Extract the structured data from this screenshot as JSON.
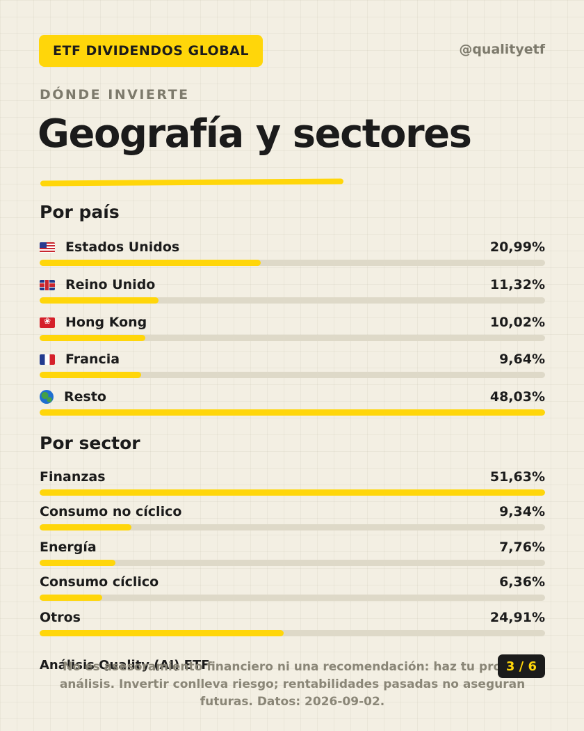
{
  "header": {
    "badge": "ETF DIVIDENDOS GLOBAL",
    "handle": "@qualityetf",
    "eyebrow": "DÓNDE INVIERTE",
    "title": "Geografía y sectores"
  },
  "countries": {
    "title": "Por país",
    "items": [
      {
        "label": "Estados Unidos",
        "value": "20,99%",
        "pct": 20.99,
        "flag": "us-flag-icon"
      },
      {
        "label": "Reino Unido",
        "value": "11,32%",
        "pct": 11.32,
        "flag": "uk-flag-icon"
      },
      {
        "label": "Hong Kong",
        "value": "10,02%",
        "pct": 10.02,
        "flag": "hk-flag-icon"
      },
      {
        "label": "Francia",
        "value": "9,64%",
        "pct": 9.64,
        "flag": "fr-flag-icon"
      },
      {
        "label": "Resto",
        "value": "48,03%",
        "pct": 48.03,
        "flag": "globe-icon"
      }
    ]
  },
  "sectors": {
    "title": "Por sector",
    "items": [
      {
        "label": "Finanzas",
        "value": "51,63%",
        "pct": 51.63
      },
      {
        "label": "Consumo no cíclico",
        "value": "9,34%",
        "pct": 9.34
      },
      {
        "label": "Energía",
        "value": "7,76%",
        "pct": 7.76
      },
      {
        "label": "Consumo cíclico",
        "value": "6,36%",
        "pct": 6.36
      },
      {
        "label": "Otros",
        "value": "24,91%",
        "pct": 24.91
      }
    ]
  },
  "footer": {
    "title": "Análisis Quality (AI) ETF",
    "disclaimer": "No es asesoramiento financiero ni una recomendación: haz tu propio análisis. Invertir conlleva riesgo; rentabilidades pasadas no aseguran futuras. Datos: 2026-09-02.",
    "page": "3 / 6"
  },
  "colors": {
    "accent": "#ffd60a",
    "background": "#f3efe3",
    "text": "#1b1b1b",
    "muted": "#7d7a6c",
    "track": "#ded9c8"
  }
}
